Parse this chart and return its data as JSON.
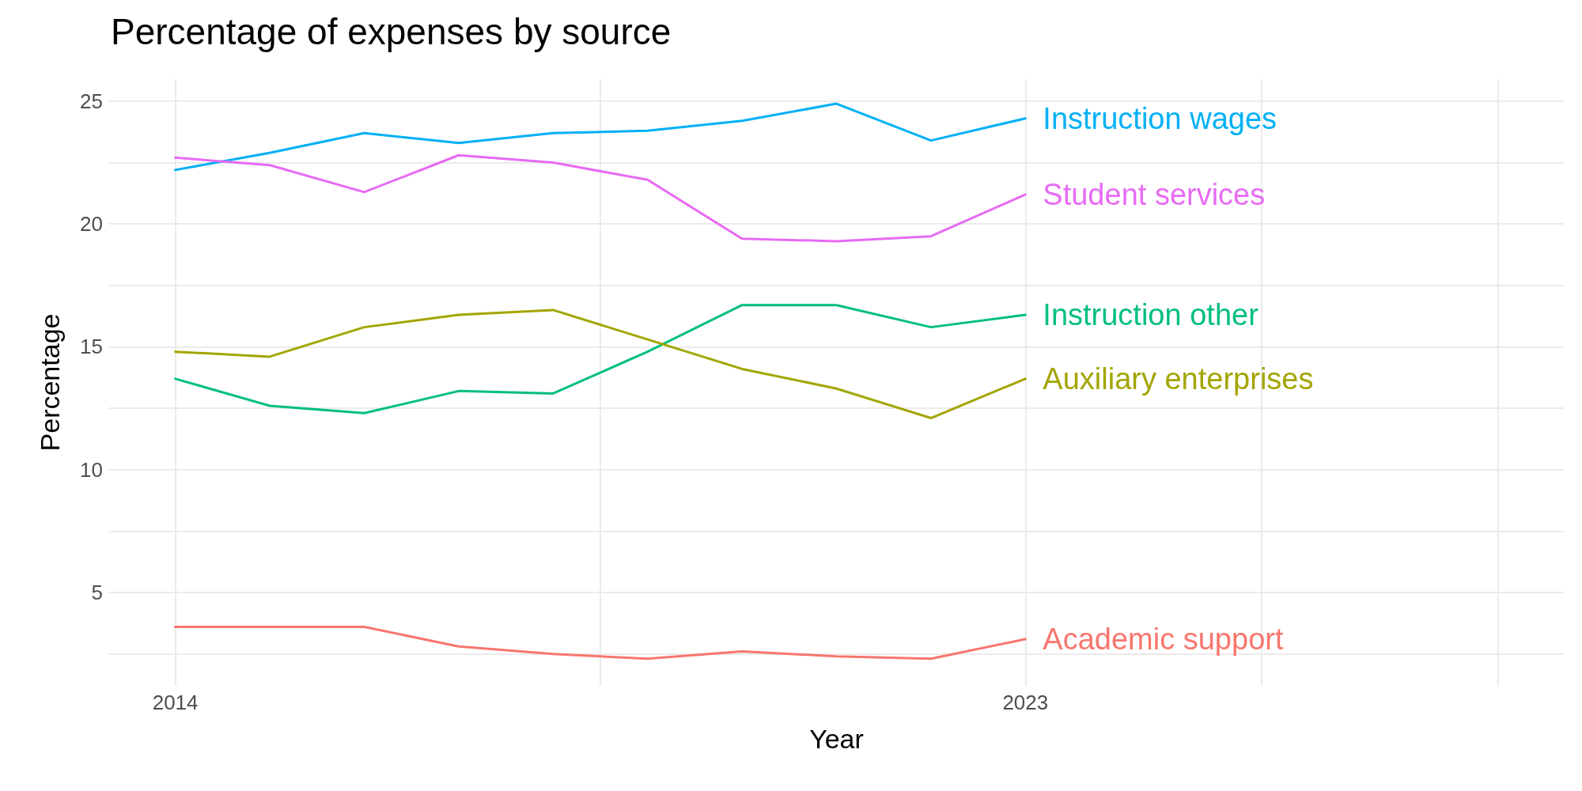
{
  "chart_data": {
    "type": "line",
    "title": "Percentage of expenses by source",
    "xlabel": "Year",
    "ylabel": "Percentage",
    "x": [
      2014,
      2015,
      2016,
      2017,
      2018,
      2019,
      2020,
      2021,
      2022,
      2023
    ],
    "series": [
      {
        "name": "Instruction wages",
        "color": "#00b0f6",
        "values": [
          22.2,
          22.9,
          23.7,
          23.3,
          23.7,
          23.8,
          24.2,
          24.9,
          23.4,
          24.3
        ]
      },
      {
        "name": "Student services",
        "color": "#e76bf3",
        "values": [
          22.7,
          22.4,
          21.3,
          22.8,
          22.5,
          21.8,
          19.4,
          19.3,
          19.5,
          21.2
        ]
      },
      {
        "name": "Instruction other",
        "color": "#00bf7d",
        "values": [
          13.7,
          12.6,
          12.3,
          13.2,
          13.1,
          14.8,
          16.7,
          16.7,
          15.8,
          16.3
        ]
      },
      {
        "name": "Auxiliary enterprises",
        "color": "#a3a500",
        "values": [
          14.8,
          14.6,
          15.8,
          16.3,
          16.5,
          15.3,
          14.1,
          13.3,
          12.1,
          13.7
        ]
      },
      {
        "name": "Academic support",
        "color": "#f8766d",
        "values": [
          3.6,
          3.6,
          3.6,
          2.8,
          2.5,
          2.3,
          2.6,
          2.4,
          2.3,
          3.1
        ]
      }
    ],
    "xlim": [
      2013.3,
      2028.7
    ],
    "xticks": [
      2014,
      {
        "value": 2018.5,
        "label": null
      },
      2023,
      {
        "value": 2025.5,
        "label": null
      },
      {
        "value": 2028,
        "label": null
      }
    ],
    "ylim": [
      1.2,
      25.9
    ],
    "yticks": [
      {
        "value": 2.5,
        "label": null
      },
      5,
      {
        "value": 7.5,
        "label": null
      },
      10,
      {
        "value": 12.5,
        "label": null
      },
      15,
      {
        "value": 17.5,
        "label": null
      },
      20,
      {
        "value": 22.5,
        "label": null
      },
      25
    ],
    "grid": true,
    "legend": false,
    "marker": "none",
    "line_style": "solid"
  }
}
